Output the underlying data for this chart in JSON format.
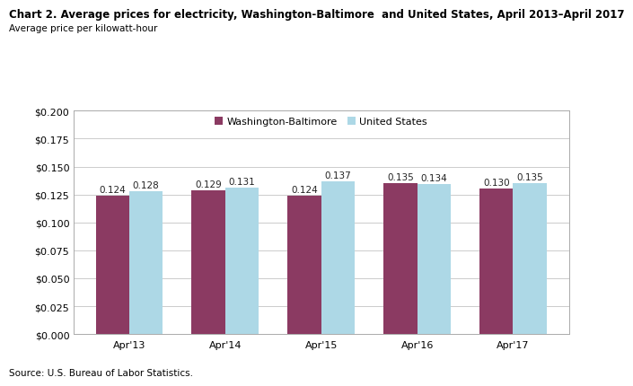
{
  "title": "Chart 2. Average prices for electricity, Washington-Baltimore  and United States, April 2013–April 2017",
  "axis_label": "Average price per kilowatt-hour",
  "source": "Source: U.S. Bureau of Labor Statistics.",
  "categories": [
    "Apr'13",
    "Apr'14",
    "Apr'15",
    "Apr'16",
    "Apr'17"
  ],
  "series": [
    {
      "label": "Washington-Baltimore",
      "color": "#8B3A62",
      "values": [
        0.124,
        0.129,
        0.124,
        0.135,
        0.13
      ]
    },
    {
      "label": "United States",
      "color": "#ADD8E6",
      "values": [
        0.128,
        0.131,
        0.137,
        0.134,
        0.135
      ]
    }
  ],
  "ylim": [
    0.0,
    0.2
  ],
  "yticks": [
    0.0,
    0.025,
    0.05,
    0.075,
    0.1,
    0.125,
    0.15,
    0.175,
    0.2
  ],
  "bar_width": 0.35,
  "title_fontsize": 8.5,
  "axis_label_fontsize": 7.5,
  "tick_fontsize": 8,
  "bar_label_fontsize": 7.5,
  "legend_fontsize": 8,
  "source_fontsize": 7.5,
  "background_color": "#ffffff",
  "grid_color": "#cccccc",
  "spine_color": "#aaaaaa"
}
